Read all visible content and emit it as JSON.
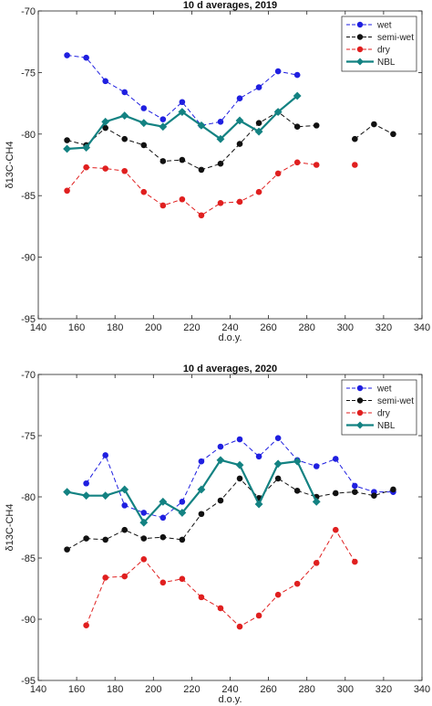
{
  "chart_data": [
    {
      "type": "line",
      "title": "10 d averages, 2019",
      "xlabel": "d.o.y.",
      "ylabel": "δ13C-CH4",
      "xlim": [
        140,
        340
      ],
      "ylim": [
        -95,
        -70
      ],
      "xticks": [
        140,
        160,
        180,
        200,
        220,
        240,
        260,
        280,
        300,
        320,
        340
      ],
      "yticks": [
        -95,
        -90,
        -85,
        -80,
        -75,
        -70
      ],
      "legend": "top-right",
      "series": [
        {
          "name": "wet",
          "color": "#1f1fe0",
          "style": "dashed",
          "x": [
            155,
            165,
            175,
            185,
            195,
            205,
            215,
            225,
            235,
            245,
            255,
            265,
            275
          ],
          "y": [
            -73.6,
            -73.8,
            -75.7,
            -76.6,
            -77.9,
            -78.8,
            -77.4,
            -79.3,
            -79.0,
            -77.1,
            -76.2,
            -74.9,
            -75.2
          ]
        },
        {
          "name": "semi-wet",
          "color": "#111111",
          "style": "dashed",
          "x": [
            155,
            165,
            175,
            185,
            195,
            205,
            215,
            225,
            235,
            245,
            255,
            265,
            275,
            285,
            305,
            315,
            325
          ],
          "y": [
            -80.5,
            -80.9,
            -79.5,
            -80.4,
            -80.9,
            -82.2,
            -82.1,
            -82.9,
            -82.4,
            -80.8,
            -79.1,
            -78.2,
            -79.4,
            -79.3,
            -80.4,
            -79.2,
            -80.0
          ]
        },
        {
          "name": "dry",
          "color": "#e01f1f",
          "style": "dashed",
          "x": [
            155,
            165,
            175,
            185,
            195,
            205,
            215,
            225,
            235,
            245,
            255,
            265,
            275,
            285,
            305
          ],
          "y": [
            -84.6,
            -82.7,
            -82.8,
            -83.0,
            -84.7,
            -85.8,
            -85.3,
            -86.6,
            -85.6,
            -85.5,
            -84.7,
            -83.2,
            -82.3,
            -82.5,
            -82.5
          ]
        },
        {
          "name": "NBL",
          "color": "#138282",
          "style": "solid",
          "x": [
            155,
            165,
            175,
            185,
            195,
            205,
            215,
            225,
            235,
            245,
            255,
            265,
            275
          ],
          "y": [
            -81.2,
            -81.1,
            -79.0,
            -78.5,
            -79.1,
            -79.4,
            -78.2,
            -79.3,
            -80.4,
            -78.9,
            -79.8,
            -78.2,
            -76.9
          ]
        }
      ]
    },
    {
      "type": "line",
      "title": "10 d averages, 2020",
      "xlabel": "d.o.y.",
      "ylabel": "δ13C-CH4",
      "xlim": [
        140,
        340
      ],
      "ylim": [
        -95,
        -70
      ],
      "xticks": [
        140,
        160,
        180,
        200,
        220,
        240,
        260,
        280,
        300,
        320,
        340
      ],
      "yticks": [
        -95,
        -90,
        -85,
        -80,
        -75,
        -70
      ],
      "legend": "top-right",
      "series": [
        {
          "name": "wet",
          "color": "#1f1fe0",
          "style": "dashed",
          "x": [
            165,
            175,
            185,
            195,
            205,
            215,
            225,
            235,
            245,
            255,
            265,
            275,
            285,
            295,
            305,
            315,
            325
          ],
          "y": [
            -78.9,
            -76.6,
            -80.7,
            -81.3,
            -81.7,
            -80.4,
            -77.1,
            -75.9,
            -75.3,
            -76.7,
            -75.2,
            -77.0,
            -77.5,
            -76.9,
            -79.1,
            -79.6,
            -79.6
          ]
        },
        {
          "name": "semi-wet",
          "color": "#111111",
          "style": "dashed",
          "x": [
            155,
            165,
            175,
            185,
            195,
            205,
            215,
            225,
            235,
            245,
            255,
            265,
            275,
            285,
            295,
            305,
            315,
            325
          ],
          "y": [
            -84.3,
            -83.4,
            -83.5,
            -82.7,
            -83.4,
            -83.3,
            -83.5,
            -81.4,
            -80.3,
            -78.5,
            -80.1,
            -78.5,
            -79.5,
            -80.0,
            -79.7,
            -79.6,
            -79.9,
            -79.4
          ]
        },
        {
          "name": "dry",
          "color": "#e01f1f",
          "style": "dashed",
          "x": [
            165,
            175,
            185,
            195,
            205,
            215,
            225,
            235,
            245,
            255,
            265,
            275,
            285,
            295,
            305
          ],
          "y": [
            -90.5,
            -86.6,
            -86.5,
            -85.1,
            -87.0,
            -86.7,
            -88.2,
            -89.1,
            -90.6,
            -89.7,
            -88.0,
            -87.1,
            -85.4,
            -82.7,
            -85.3
          ]
        },
        {
          "name": "NBL",
          "color": "#138282",
          "style": "solid",
          "x": [
            155,
            165,
            175,
            185,
            195,
            205,
            215,
            225,
            235,
            245,
            255,
            265,
            275,
            285
          ],
          "y": [
            -79.6,
            -79.9,
            -79.9,
            -79.4,
            -82.1,
            -80.4,
            -81.3,
            -79.4,
            -77.0,
            -77.4,
            -80.6,
            -77.3,
            -77.1,
            -80.4
          ]
        }
      ]
    }
  ]
}
